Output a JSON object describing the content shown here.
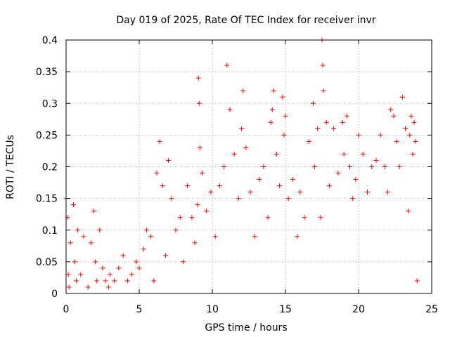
{
  "chart_data": {
    "type": "scatter",
    "title": "Day 019 of 2025, Rate Of TEC Index for receiver invr",
    "xlabel": "GPS time / hours",
    "ylabel": "ROTI / TECUs",
    "xlim": [
      0,
      25
    ],
    "ylim": [
      0,
      0.4
    ],
    "x_ticks": [
      0,
      5,
      10,
      15,
      20,
      25
    ],
    "x_tick_labels": [
      "0",
      "5",
      "10",
      "15",
      "20",
      "25"
    ],
    "y_ticks": [
      0,
      0.05,
      0.1,
      0.15,
      0.2,
      0.25,
      0.3,
      0.35,
      0.4
    ],
    "y_tick_labels": [
      "0",
      "0.05",
      "0.1",
      "0.15",
      "0.2",
      "0.25",
      "0.3",
      "0.35",
      "0.4"
    ],
    "grid": true,
    "marker": "+",
    "marker_color": "#ff0000",
    "series": [
      {
        "name": "ROTI",
        "x": [
          0.0,
          0.1,
          0.15,
          0.2,
          0.3,
          0.5,
          0.6,
          0.7,
          0.8,
          1.0,
          1.2,
          1.5,
          1.7,
          1.9,
          2.0,
          2.1,
          2.3,
          2.5,
          2.7,
          2.9,
          3.0,
          3.3,
          3.6,
          3.9,
          4.2,
          4.5,
          4.8,
          5.0,
          5.3,
          5.5,
          5.8,
          6.0,
          6.2,
          6.4,
          6.6,
          6.8,
          7.0,
          7.2,
          7.5,
          7.8,
          8.0,
          8.3,
          8.6,
          8.8,
          9.0,
          9.05,
          9.1,
          9.15,
          9.3,
          9.6,
          9.9,
          10.2,
          10.5,
          10.8,
          11.0,
          11.2,
          11.5,
          11.8,
          12.0,
          12.1,
          12.3,
          12.6,
          12.9,
          13.2,
          13.5,
          13.8,
          14.0,
          14.1,
          14.2,
          14.4,
          14.6,
          14.8,
          14.9,
          15.0,
          15.2,
          15.5,
          15.8,
          16.0,
          16.3,
          16.6,
          16.9,
          17.0,
          17.2,
          17.4,
          17.5,
          17.55,
          17.6,
          17.8,
          18.0,
          18.3,
          18.6,
          18.9,
          19.0,
          19.2,
          19.4,
          19.6,
          19.8,
          20.0,
          20.3,
          20.6,
          20.9,
          21.2,
          21.5,
          21.8,
          22.0,
          22.2,
          22.4,
          22.6,
          22.8,
          23.0,
          23.2,
          23.4,
          23.5,
          23.6,
          23.7,
          23.8,
          23.9,
          24.0
        ],
        "y": [
          0.15,
          0.12,
          0.03,
          0.01,
          0.08,
          0.14,
          0.05,
          0.02,
          0.1,
          0.03,
          0.09,
          0.01,
          0.08,
          0.13,
          0.05,
          0.02,
          0.1,
          0.04,
          0.02,
          0.01,
          0.03,
          0.02,
          0.04,
          0.06,
          0.02,
          0.03,
          0.05,
          0.04,
          0.07,
          0.1,
          0.09,
          0.02,
          0.19,
          0.24,
          0.17,
          0.06,
          0.21,
          0.15,
          0.1,
          0.12,
          0.05,
          0.17,
          0.12,
          0.08,
          0.14,
          0.34,
          0.3,
          0.23,
          0.19,
          0.13,
          0.16,
          0.09,
          0.17,
          0.2,
          0.36,
          0.29,
          0.22,
          0.15,
          0.26,
          0.32,
          0.23,
          0.16,
          0.09,
          0.18,
          0.2,
          0.12,
          0.27,
          0.29,
          0.32,
          0.22,
          0.17,
          0.31,
          0.25,
          0.28,
          0.15,
          0.18,
          0.09,
          0.16,
          0.12,
          0.24,
          0.3,
          0.2,
          0.26,
          0.12,
          0.4,
          0.36,
          0.32,
          0.27,
          0.17,
          0.26,
          0.19,
          0.27,
          0.22,
          0.28,
          0.2,
          0.15,
          0.18,
          0.25,
          0.22,
          0.16,
          0.2,
          0.21,
          0.25,
          0.2,
          0.16,
          0.29,
          0.28,
          0.24,
          0.2,
          0.31,
          0.26,
          0.13,
          0.25,
          0.28,
          0.22,
          0.27,
          0.24,
          0.02
        ]
      }
    ],
    "description_note_omitted": ""
  }
}
